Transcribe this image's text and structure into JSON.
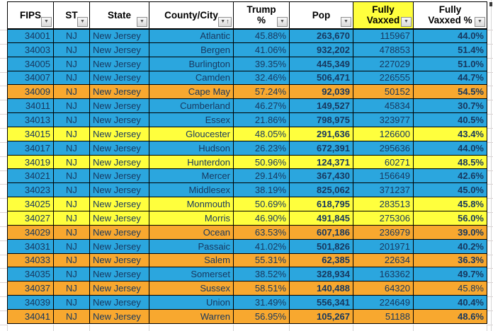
{
  "table": {
    "columns": [
      {
        "id": "fips",
        "label": "FIPS",
        "label2": "",
        "filter": "dropdown"
      },
      {
        "id": "st",
        "label": "ST",
        "label2": "",
        "filter": "dropdown"
      },
      {
        "id": "state",
        "label": "State",
        "label2": "",
        "filter": "dropdown"
      },
      {
        "id": "county",
        "label": "County/City",
        "label2": "",
        "filter": "dropdown-sort-asc"
      },
      {
        "id": "trump_pct",
        "label": "Trump",
        "label2": "%",
        "filter": "dropdown"
      },
      {
        "id": "pop",
        "label": "Pop",
        "label2": "",
        "filter": "dropdown"
      },
      {
        "id": "vaxxed",
        "label": "Fully",
        "label2": "Vaxxed",
        "filter": "dropdown",
        "highlighted": true
      },
      {
        "id": "vaxxed_pct",
        "label": "Fully",
        "label2": "Vaxxed %",
        "filter": "dropdown"
      }
    ],
    "rows": [
      {
        "fips": "34001",
        "st": "NJ",
        "state": "New Jersey",
        "county": "Atlantic",
        "trump_pct": "45.88%",
        "pop": "263,670",
        "vaxxed": "115967",
        "vaxxed_pct": "44.0%",
        "color": "blue"
      },
      {
        "fips": "34003",
        "st": "NJ",
        "state": "New Jersey",
        "county": "Bergen",
        "trump_pct": "41.06%",
        "pop": "932,202",
        "vaxxed": "478853",
        "vaxxed_pct": "51.4%",
        "color": "blue"
      },
      {
        "fips": "34005",
        "st": "NJ",
        "state": "New Jersey",
        "county": "Burlington",
        "trump_pct": "39.35%",
        "pop": "445,349",
        "vaxxed": "227029",
        "vaxxed_pct": "51.0%",
        "color": "blue"
      },
      {
        "fips": "34007",
        "st": "NJ",
        "state": "New Jersey",
        "county": "Camden",
        "trump_pct": "32.46%",
        "pop": "506,471",
        "vaxxed": "226555",
        "vaxxed_pct": "44.7%",
        "color": "blue"
      },
      {
        "fips": "34009",
        "st": "NJ",
        "state": "New Jersey",
        "county": "Cape May",
        "trump_pct": "57.24%",
        "pop": "92,039",
        "vaxxed": "50152",
        "vaxxed_pct": "54.5%",
        "color": "orange"
      },
      {
        "fips": "34011",
        "st": "NJ",
        "state": "New Jersey",
        "county": "Cumberland",
        "trump_pct": "46.27%",
        "pop": "149,527",
        "vaxxed": "45834",
        "vaxxed_pct": "30.7%",
        "color": "blue"
      },
      {
        "fips": "34013",
        "st": "NJ",
        "state": "New Jersey",
        "county": "Essex",
        "trump_pct": "21.86%",
        "pop": "798,975",
        "vaxxed": "323977",
        "vaxxed_pct": "40.5%",
        "color": "blue"
      },
      {
        "fips": "34015",
        "st": "NJ",
        "state": "New Jersey",
        "county": "Gloucester",
        "trump_pct": "48.05%",
        "pop": "291,636",
        "vaxxed": "126600",
        "vaxxed_pct": "43.4%",
        "color": "yellow"
      },
      {
        "fips": "34017",
        "st": "NJ",
        "state": "New Jersey",
        "county": "Hudson",
        "trump_pct": "26.23%",
        "pop": "672,391",
        "vaxxed": "295636",
        "vaxxed_pct": "44.0%",
        "color": "blue"
      },
      {
        "fips": "34019",
        "st": "NJ",
        "state": "New Jersey",
        "county": "Hunterdon",
        "trump_pct": "50.96%",
        "pop": "124,371",
        "vaxxed": "60271",
        "vaxxed_pct": "48.5%",
        "color": "yellow"
      },
      {
        "fips": "34021",
        "st": "NJ",
        "state": "New Jersey",
        "county": "Mercer",
        "trump_pct": "29.14%",
        "pop": "367,430",
        "vaxxed": "156649",
        "vaxxed_pct": "42.6%",
        "color": "blue"
      },
      {
        "fips": "34023",
        "st": "NJ",
        "state": "New Jersey",
        "county": "Middlesex",
        "trump_pct": "38.19%",
        "pop": "825,062",
        "vaxxed": "371237",
        "vaxxed_pct": "45.0%",
        "color": "blue"
      },
      {
        "fips": "34025",
        "st": "NJ",
        "state": "New Jersey",
        "county": "Monmouth",
        "trump_pct": "50.69%",
        "pop": "618,795",
        "vaxxed": "283513",
        "vaxxed_pct": "45.8%",
        "color": "yellow"
      },
      {
        "fips": "34027",
        "st": "NJ",
        "state": "New Jersey",
        "county": "Morris",
        "trump_pct": "46.90%",
        "pop": "491,845",
        "vaxxed": "275306",
        "vaxxed_pct": "56.0%",
        "color": "yellow"
      },
      {
        "fips": "34029",
        "st": "NJ",
        "state": "New Jersey",
        "county": "Ocean",
        "trump_pct": "63.53%",
        "pop": "607,186",
        "vaxxed": "236979",
        "vaxxed_pct": "39.0%",
        "color": "orange"
      },
      {
        "fips": "34031",
        "st": "NJ",
        "state": "New Jersey",
        "county": "Passaic",
        "trump_pct": "41.02%",
        "pop": "501,826",
        "vaxxed": "201971",
        "vaxxed_pct": "40.2%",
        "color": "blue"
      },
      {
        "fips": "34033",
        "st": "NJ",
        "state": "New Jersey",
        "county": "Salem",
        "trump_pct": "55.31%",
        "pop": "62,385",
        "vaxxed": "22634",
        "vaxxed_pct": "36.3%",
        "color": "orange"
      },
      {
        "fips": "34035",
        "st": "NJ",
        "state": "New Jersey",
        "county": "Somerset",
        "trump_pct": "38.52%",
        "pop": "328,934",
        "vaxxed": "163362",
        "vaxxed_pct": "49.7%",
        "color": "blue"
      },
      {
        "fips": "34037",
        "st": "NJ",
        "state": "New Jersey",
        "county": "Sussex",
        "trump_pct": "58.51%",
        "pop": "140,488",
        "vaxxed": "64320",
        "vaxxed_pct": "45.8%",
        "color": "orange",
        "vaxxed_pct_bold": false
      },
      {
        "fips": "34039",
        "st": "NJ",
        "state": "New Jersey",
        "county": "Union",
        "trump_pct": "31.49%",
        "pop": "556,341",
        "vaxxed": "224649",
        "vaxxed_pct": "40.4%",
        "color": "blue"
      },
      {
        "fips": "34041",
        "st": "NJ",
        "state": "New Jersey",
        "county": "Warren",
        "trump_pct": "56.95%",
        "pop": "105,267",
        "vaxxed": "51188",
        "vaxxed_pct": "48.6%",
        "color": "orange"
      }
    ]
  },
  "icons": {
    "filter_dropdown": "▼",
    "sort_ascending": "↑"
  },
  "colors": {
    "row_blue": "#2BA6DE",
    "row_yellow": "#FFFF3D",
    "row_orange": "#F8A82F",
    "header_highlight_yellow": "#FFFF3D",
    "navy_text": "#17375E",
    "cell_border": "#000000"
  }
}
